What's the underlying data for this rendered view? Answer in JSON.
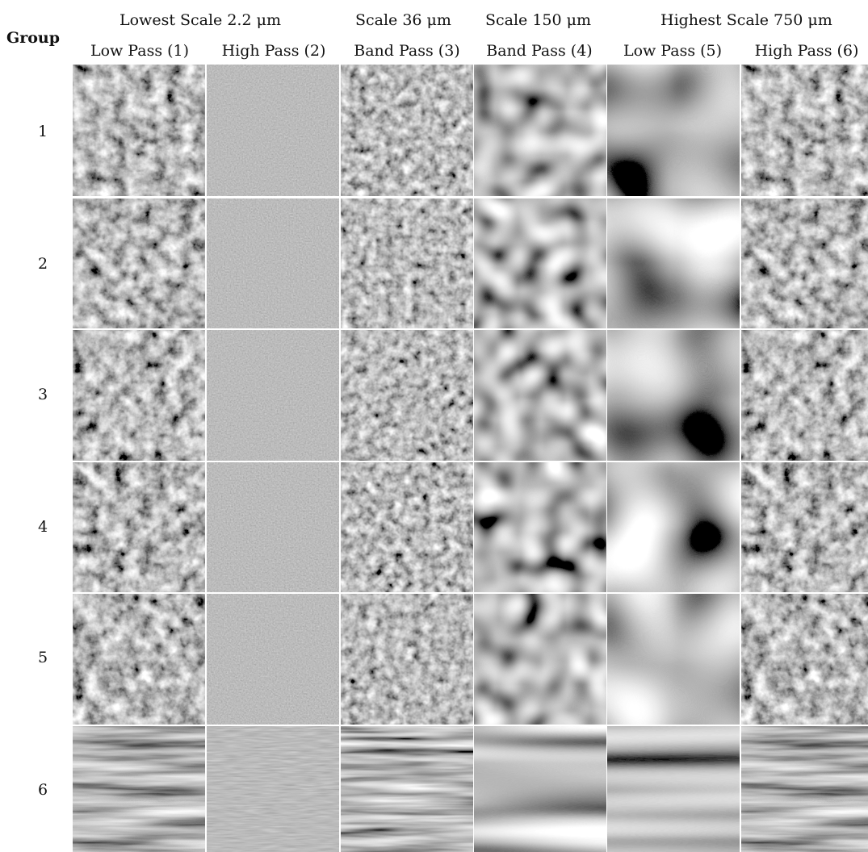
{
  "figure": {
    "scale_headers": [
      {
        "label": "Lowest Scale 2.2 μm"
      },
      {
        "label": "Scale 36 μm"
      },
      {
        "label": "Scale 150 μm"
      },
      {
        "label": "Highest Scale 750 μm"
      }
    ],
    "group_header": "Group",
    "columns": [
      {
        "label": "Low Pass (1)"
      },
      {
        "label": "High Pass (2)"
      },
      {
        "label": "Band Pass (3)"
      },
      {
        "label": "Band Pass (4)"
      },
      {
        "label": "Low Pass (5)"
      },
      {
        "label": "High Pass (6)"
      }
    ],
    "rows": [
      {
        "label": "1"
      },
      {
        "label": "2"
      },
      {
        "label": "3"
      },
      {
        "label": "4"
      },
      {
        "label": "5"
      },
      {
        "label": "6"
      }
    ]
  }
}
